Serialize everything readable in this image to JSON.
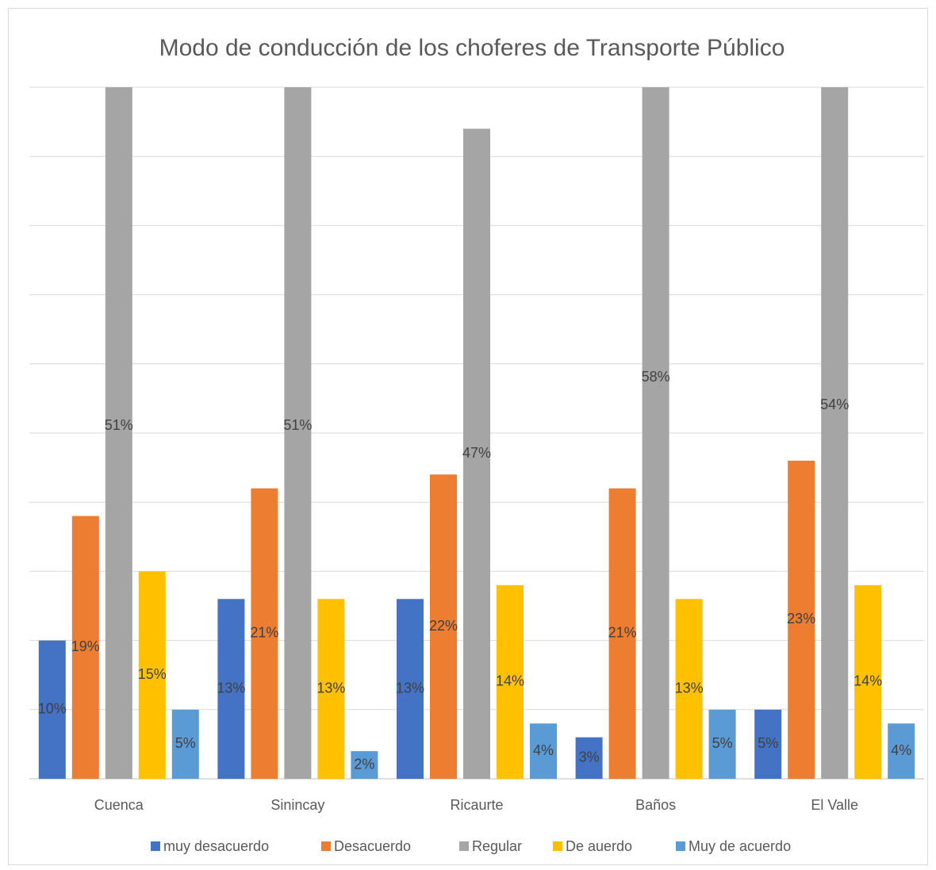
{
  "chart_data": {
    "type": "bar",
    "title": "Modo de conducción de los choferes de Transporte Público",
    "categories": [
      "Cuenca",
      "Sinincay",
      "Ricaurte",
      "Baños",
      "El Valle"
    ],
    "series": [
      {
        "name": "muy desacuerdo",
        "color": "#4472c4",
        "values": [
          10,
          13,
          13,
          3,
          5
        ],
        "value_labels": [
          "10%",
          "13%",
          "13%",
          "3%",
          "5%"
        ]
      },
      {
        "name": "Desacuerdo",
        "color": "#ed7d31",
        "values": [
          19,
          21,
          22,
          21,
          23
        ],
        "value_labels": [
          "19%",
          "21%",
          "22%",
          "21%",
          "23%"
        ]
      },
      {
        "name": "Regular",
        "color": "#a5a5a5",
        "values": [
          51,
          51,
          47,
          58,
          54
        ],
        "value_labels": [
          "51%",
          "51%",
          "47%",
          "58%",
          "54%"
        ]
      },
      {
        "name": "De auerdo",
        "color": "#ffc000",
        "values": [
          15,
          13,
          14,
          13,
          14
        ],
        "value_labels": [
          "15%",
          "13%",
          "14%",
          "13%",
          "14%"
        ]
      },
      {
        "name": "Muy de acuerdo",
        "color": "#5b9bd5",
        "values": [
          5,
          2,
          4,
          5,
          4
        ],
        "value_labels": [
          "5%",
          "2%",
          "4%",
          "5%",
          "4%"
        ]
      }
    ],
    "ylim": [
      0,
      50
    ],
    "yticks": [
      0,
      5,
      10,
      15,
      20,
      25,
      30,
      35,
      40,
      45,
      50
    ],
    "grid": true,
    "legend": "bottom"
  }
}
